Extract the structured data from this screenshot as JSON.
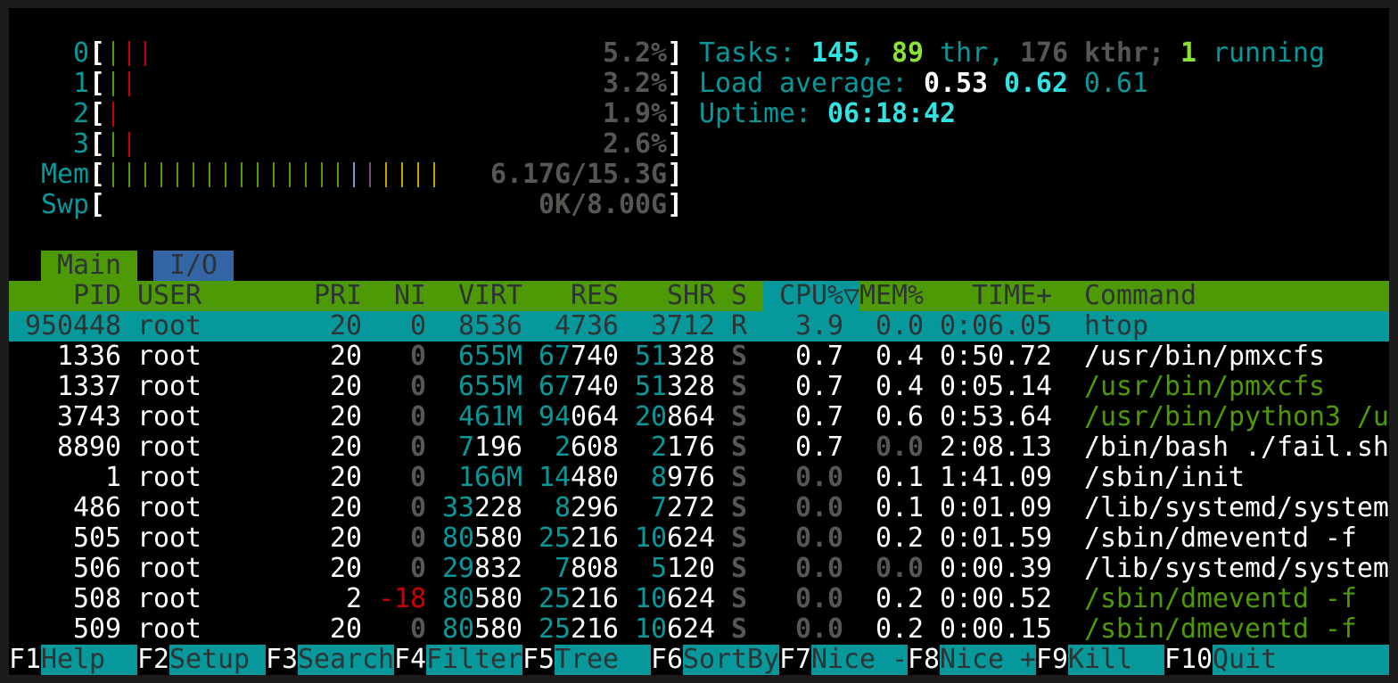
{
  "colors": {
    "green": "#4e9a06",
    "teal": "#06989a",
    "red": "#cc0000",
    "blue": "#729fcf",
    "purple": "#75507b",
    "orange": "#c4a000",
    "io_tab": "#3465a4"
  },
  "meters": {
    "cpus": [
      {
        "label": "0",
        "bars": [
          "green",
          "red",
          "red"
        ],
        "value": "5.2%"
      },
      {
        "label": "1",
        "bars": [
          "green",
          "red"
        ],
        "value": "3.2%"
      },
      {
        "label": "2",
        "bars": [
          "red"
        ],
        "value": "1.9%"
      },
      {
        "label": "3",
        "bars": [
          "green",
          "red"
        ],
        "value": "2.6%"
      }
    ],
    "mem": {
      "label": "Mem",
      "bars": [
        "green",
        "green",
        "green",
        "green",
        "green",
        "green",
        "green",
        "green",
        "green",
        "green",
        "green",
        "green",
        "green",
        "green",
        "green",
        "blue",
        "purple",
        "orange",
        "orange",
        "orange",
        "orange"
      ],
      "value": "6.17G/15.3G"
    },
    "swap": {
      "label": "Swp",
      "bars": [],
      "value": "0K/8.00G"
    }
  },
  "tasks": {
    "label": "Tasks: ",
    "count": "145",
    "sep1": ", ",
    "threads": "89",
    "thr_label": " thr, ",
    "kthreads": "176",
    "kthr_label": " kthr; ",
    "running": "1",
    "running_label": " running"
  },
  "load": {
    "label": "Load average: ",
    "one": "0.53",
    "five": "0.62",
    "fifteen": "0.61"
  },
  "uptime": {
    "label": "Uptime: ",
    "value": "06:18:42"
  },
  "tabs": [
    {
      "label": "Main",
      "active": true
    },
    {
      "label": "I/O",
      "active": false
    }
  ],
  "columns": {
    "pid": "PID",
    "user": "USER",
    "pri": "PRI",
    "ni": "NI",
    "virt": "VIRT",
    "res": "RES",
    "shr": "SHR",
    "s": "S",
    "cpu": "CPU%▽",
    "mem": "MEM%",
    "time": "TIME+",
    "command": "Command"
  },
  "rows": [
    {
      "pid": "950448",
      "user": "root",
      "pri": "20",
      "ni": "0",
      "virt": "8536",
      "res": "4736",
      "shr": "3712",
      "s": "R",
      "cpu": "3.9",
      "mem": "0.0",
      "time": "0:06.05",
      "command": "htop",
      "selected": true
    },
    {
      "pid": "1336",
      "user": "root",
      "pri": "20",
      "ni": "0",
      "virt": "655M",
      "res": "67740",
      "shr": "51328",
      "s": "S",
      "cpu": "0.7",
      "mem": "0.4",
      "time": "0:50.72",
      "command": "/usr/bin/pmxcfs"
    },
    {
      "pid": "1337",
      "user": "root",
      "pri": "20",
      "ni": "0",
      "virt": "655M",
      "res": "67740",
      "shr": "51328",
      "s": "S",
      "cpu": "0.7",
      "mem": "0.4",
      "time": "0:05.14",
      "command": "/usr/bin/pmxcfs",
      "thread": true
    },
    {
      "pid": "3743",
      "user": "root",
      "pri": "20",
      "ni": "0",
      "virt": "461M",
      "res": "94064",
      "shr": "20864",
      "s": "S",
      "cpu": "0.7",
      "mem": "0.6",
      "time": "0:53.64",
      "command": "/usr/bin/python3 /u",
      "thread": true
    },
    {
      "pid": "8890",
      "user": "root",
      "pri": "20",
      "ni": "0",
      "virt": "7196",
      "res": "2608",
      "shr": "2176",
      "s": "S",
      "cpu": "0.7",
      "mem": "0.0",
      "time": "2:08.13",
      "command": "/bin/bash ./fail.sh"
    },
    {
      "pid": "1",
      "user": "root",
      "pri": "20",
      "ni": "0",
      "virt": "166M",
      "res": "14480",
      "shr": "8976",
      "s": "S",
      "cpu": "0.0",
      "mem": "0.1",
      "time": "1:41.09",
      "command": "/sbin/init"
    },
    {
      "pid": "486",
      "user": "root",
      "pri": "20",
      "ni": "0",
      "virt": "33228",
      "res": "8296",
      "shr": "7272",
      "s": "S",
      "cpu": "0.0",
      "mem": "0.1",
      "time": "0:01.09",
      "command": "/lib/systemd/system"
    },
    {
      "pid": "505",
      "user": "root",
      "pri": "20",
      "ni": "0",
      "virt": "80580",
      "res": "25216",
      "shr": "10624",
      "s": "S",
      "cpu": "0.0",
      "mem": "0.2",
      "time": "0:01.59",
      "command": "/sbin/dmeventd -f"
    },
    {
      "pid": "506",
      "user": "root",
      "pri": "20",
      "ni": "0",
      "virt": "29832",
      "res": "7808",
      "shr": "5120",
      "s": "S",
      "cpu": "0.0",
      "mem": "0.0",
      "time": "0:00.39",
      "command": "/lib/systemd/system"
    },
    {
      "pid": "508",
      "user": "root",
      "pri": "2",
      "ni": "-18",
      "virt": "80580",
      "res": "25216",
      "shr": "10624",
      "s": "S",
      "cpu": "0.0",
      "mem": "0.2",
      "time": "0:00.52",
      "command": "/sbin/dmeventd -f",
      "thread": true
    },
    {
      "pid": "509",
      "user": "root",
      "pri": "20",
      "ni": "0",
      "virt": "80580",
      "res": "25216",
      "shr": "10624",
      "s": "S",
      "cpu": "0.0",
      "mem": "0.2",
      "time": "0:00.15",
      "command": "/sbin/dmeventd -f",
      "thread": true
    }
  ],
  "footer": [
    {
      "key": "F1",
      "label": "Help"
    },
    {
      "key": "F2",
      "label": "Setup"
    },
    {
      "key": "F3",
      "label": "Search"
    },
    {
      "key": "F4",
      "label": "Filter"
    },
    {
      "key": "F5",
      "label": "Tree"
    },
    {
      "key": "F6",
      "label": "SortBy"
    },
    {
      "key": "F7",
      "label": "Nice -"
    },
    {
      "key": "F8",
      "label": "Nice +"
    },
    {
      "key": "F9",
      "label": "Kill"
    },
    {
      "key": "F10",
      "label": "Quit"
    }
  ]
}
